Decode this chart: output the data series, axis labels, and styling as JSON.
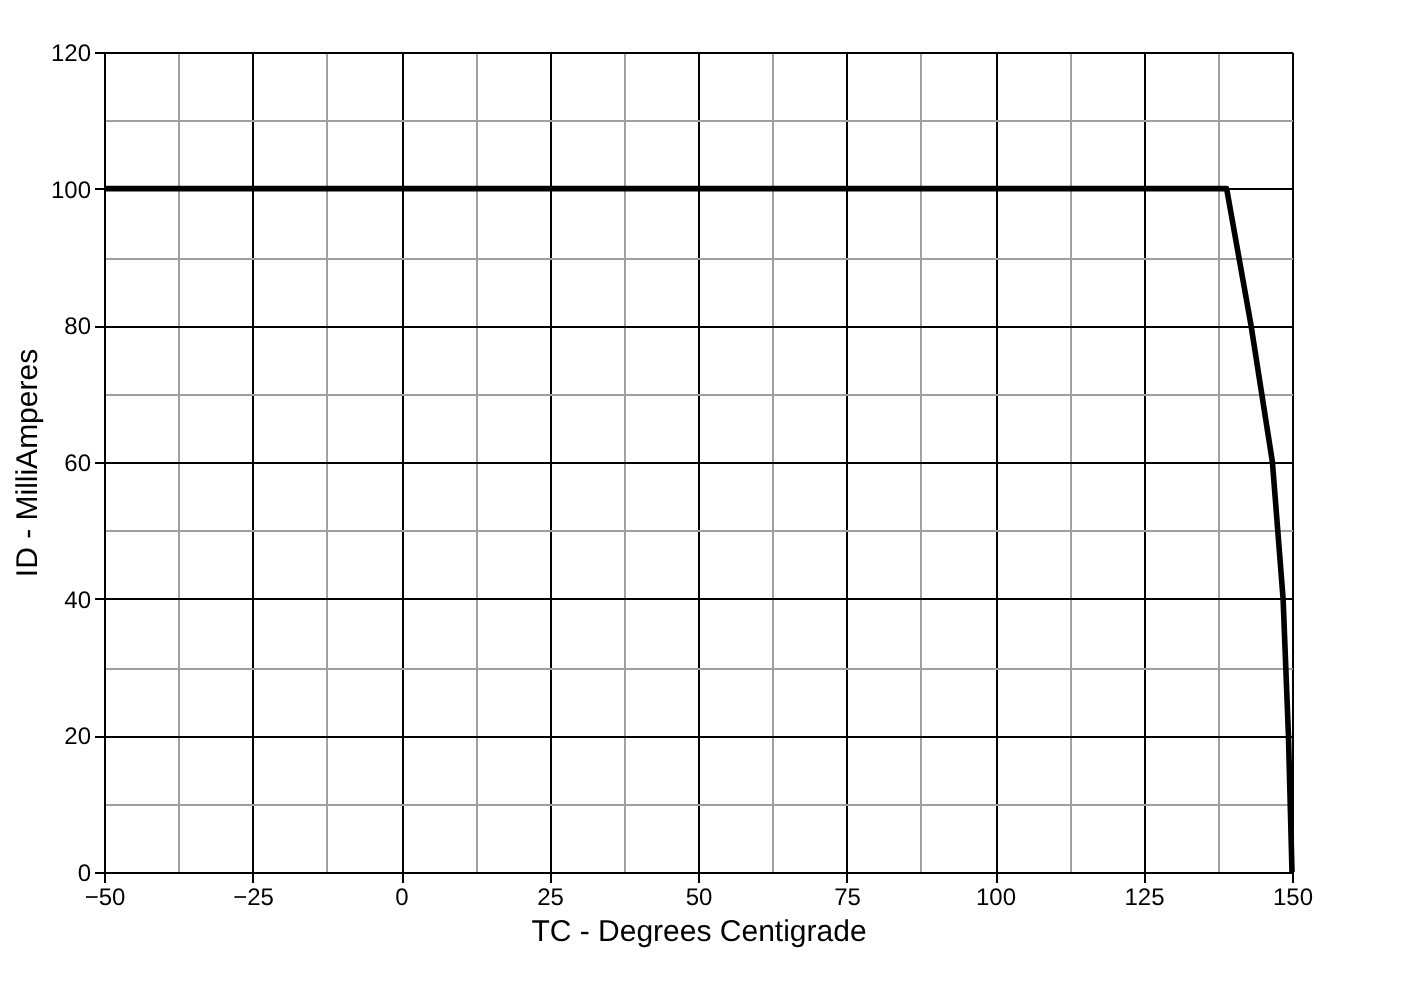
{
  "chart_data": {
    "type": "line",
    "xlabel": "TC - Degrees Centigrade",
    "ylabel": "ID - MilliAmperes",
    "x": [
      -50,
      139,
      143.1,
      146.7,
      148.5,
      149.4,
      150
    ],
    "series": [
      {
        "color": "#000000",
        "values": [
          100,
          100,
          80,
          60,
          40,
          20,
          0
        ]
      }
    ],
    "xlim": [
      -50,
      150
    ],
    "xticks": [
      -50,
      -25,
      0,
      25,
      50,
      75,
      100,
      125,
      150
    ],
    "ylim": [
      0,
      120
    ],
    "yticks": [
      0,
      20,
      40,
      60,
      80,
      100,
      120
    ],
    "grid": true,
    "marker": "none",
    "line_style": "solid"
  }
}
